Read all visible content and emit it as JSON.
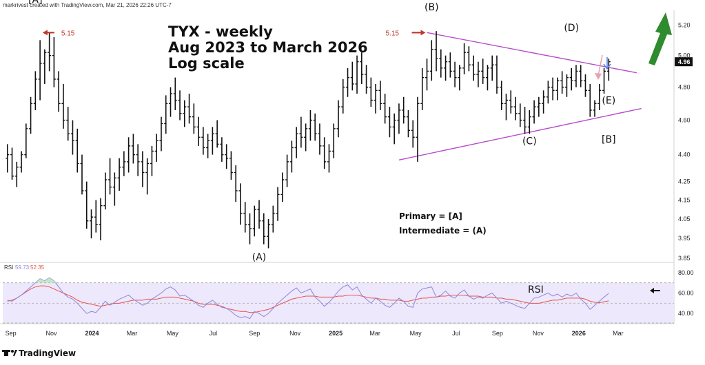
{
  "header": {
    "credit": "markrivest created with TradingView.com, Mar 21, 2026 22:26 UTC-7"
  },
  "title_lines": [
    "TYX - weekly",
    "Aug 2023 to March 2026",
    "Log scale"
  ],
  "notes": {
    "primary": "Primary = [A]",
    "intermediate": "Intermediate =  (A)"
  },
  "footer": {
    "brand": "TradingView"
  },
  "colors": {
    "bars": "#111111",
    "triangle": "#b74cc9",
    "rsi_line": "#8f86d9",
    "rsi_ma": "#e8504a",
    "rsi_band": "#ede8fb",
    "red_arrow": "#c0392b",
    "pink_arrow": "#e8a0b4",
    "blue_arrow": "#4a7fe0",
    "green_arrow": "#2e8b2e"
  },
  "chart_data": {
    "type": "ohlc-bar",
    "scale": "log",
    "ylim": [
      3.85,
      5.3
    ],
    "yticks": [
      "5.20",
      "5.00",
      "4.80",
      "4.60",
      "4.40",
      "4.25",
      "4.15",
      "4.05",
      "3.95",
      "3.85"
    ],
    "x_range": [
      "2023-08-20",
      "2026-05-24"
    ],
    "xticks": [
      {
        "label": "Sep",
        "date": "2023-09-01",
        "bold": false
      },
      {
        "label": "Nov",
        "date": "2023-11-01",
        "bold": false
      },
      {
        "label": "2024",
        "date": "2024-01-01",
        "bold": true
      },
      {
        "label": "Mar",
        "date": "2024-03-01",
        "bold": false
      },
      {
        "label": "May",
        "date": "2024-05-01",
        "bold": false
      },
      {
        "label": "Jul",
        "date": "2024-07-01",
        "bold": false
      },
      {
        "label": "Sep",
        "date": "2024-09-01",
        "bold": false
      },
      {
        "label": "Nov",
        "date": "2024-11-01",
        "bold": false
      },
      {
        "label": "2025",
        "date": "2025-01-01",
        "bold": true
      },
      {
        "label": "Mar",
        "date": "2025-03-01",
        "bold": false
      },
      {
        "label": "May",
        "date": "2025-05-01",
        "bold": false
      },
      {
        "label": "Jul",
        "date": "2025-07-01",
        "bold": false
      },
      {
        "label": "Sep",
        "date": "2025-09-01",
        "bold": false
      },
      {
        "label": "Nov",
        "date": "2025-11-01",
        "bold": false
      },
      {
        "label": "2026",
        "date": "2026-01-01",
        "bold": true
      },
      {
        "label": "Mar",
        "date": "2026-03-01",
        "bold": false
      }
    ],
    "last_price": "4.96",
    "start_date": "2023-08-27",
    "bars": [
      [
        4.38,
        4.46,
        4.3,
        4.4
      ],
      [
        4.4,
        4.44,
        4.26,
        4.28
      ],
      [
        4.28,
        4.36,
        4.22,
        4.33
      ],
      [
        4.33,
        4.42,
        4.3,
        4.4
      ],
      [
        4.4,
        4.58,
        4.38,
        4.55
      ],
      [
        4.55,
        4.74,
        4.52,
        4.7
      ],
      [
        4.7,
        4.9,
        4.66,
        4.85
      ],
      [
        4.85,
        5.1,
        4.72,
        4.95
      ],
      [
        4.95,
        5.04,
        4.82,
        5.02
      ],
      [
        5.02,
        5.15,
        4.9,
        5.0
      ],
      [
        5.0,
        5.12,
        4.8,
        4.85
      ],
      [
        4.85,
        4.9,
        4.65,
        4.7
      ],
      [
        4.7,
        4.82,
        4.55,
        4.6
      ],
      [
        4.6,
        4.68,
        4.48,
        4.52
      ],
      [
        4.52,
        4.6,
        4.4,
        4.48
      ],
      [
        4.48,
        4.55,
        4.3,
        4.35
      ],
      [
        4.35,
        4.4,
        4.18,
        4.2
      ],
      [
        4.2,
        4.25,
        4.0,
        4.04
      ],
      [
        4.04,
        4.1,
        3.95,
        4.06
      ],
      [
        4.06,
        4.15,
        3.98,
        4.02
      ],
      [
        4.02,
        4.16,
        3.94,
        4.12
      ],
      [
        4.12,
        4.3,
        4.1,
        4.26
      ],
      [
        4.26,
        4.38,
        4.18,
        4.22
      ],
      [
        4.22,
        4.3,
        4.12,
        4.27
      ],
      [
        4.27,
        4.38,
        4.2,
        4.33
      ],
      [
        4.33,
        4.42,
        4.28,
        4.36
      ],
      [
        4.36,
        4.5,
        4.3,
        4.45
      ],
      [
        4.45,
        4.52,
        4.35,
        4.4
      ],
      [
        4.4,
        4.46,
        4.28,
        4.36
      ],
      [
        4.36,
        4.42,
        4.22,
        4.3
      ],
      [
        4.3,
        4.38,
        4.18,
        4.35
      ],
      [
        4.35,
        4.45,
        4.28,
        4.42
      ],
      [
        4.42,
        4.52,
        4.36,
        4.48
      ],
      [
        4.48,
        4.62,
        4.42,
        4.58
      ],
      [
        4.58,
        4.75,
        4.52,
        4.7
      ],
      [
        4.7,
        4.8,
        4.62,
        4.76
      ],
      [
        4.76,
        4.86,
        4.66,
        4.72
      ],
      [
        4.72,
        4.78,
        4.6,
        4.64
      ],
      [
        4.64,
        4.72,
        4.56,
        4.68
      ],
      [
        4.68,
        4.76,
        4.58,
        4.62
      ],
      [
        4.62,
        4.7,
        4.52,
        4.56
      ],
      [
        4.56,
        4.62,
        4.45,
        4.5
      ],
      [
        4.5,
        4.56,
        4.4,
        4.44
      ],
      [
        4.44,
        4.52,
        4.38,
        4.48
      ],
      [
        4.48,
        4.56,
        4.4,
        4.52
      ],
      [
        4.52,
        4.6,
        4.44,
        4.46
      ],
      [
        4.46,
        4.5,
        4.36,
        4.4
      ],
      [
        4.4,
        4.46,
        4.32,
        4.38
      ],
      [
        4.38,
        4.42,
        4.26,
        4.3
      ],
      [
        4.3,
        4.34,
        4.14,
        4.2
      ],
      [
        4.2,
        4.24,
        4.02,
        4.08
      ],
      [
        4.08,
        4.14,
        3.98,
        4.02
      ],
      [
        4.02,
        4.08,
        3.92,
        4.0
      ],
      [
        4.0,
        4.12,
        3.96,
        4.1
      ],
      [
        4.1,
        4.15,
        4.0,
        4.04
      ],
      [
        4.04,
        4.08,
        3.92,
        3.96
      ],
      [
        3.96,
        4.05,
        3.9,
        4.02
      ],
      [
        4.02,
        4.12,
        3.98,
        4.08
      ],
      [
        4.08,
        4.22,
        4.04,
        4.18
      ],
      [
        4.18,
        4.3,
        4.14,
        4.26
      ],
      [
        4.26,
        4.4,
        4.22,
        4.36
      ],
      [
        4.36,
        4.48,
        4.3,
        4.44
      ],
      [
        4.44,
        4.56,
        4.38,
        4.52
      ],
      [
        4.52,
        4.62,
        4.44,
        4.5
      ],
      [
        4.5,
        4.58,
        4.42,
        4.55
      ],
      [
        4.55,
        4.66,
        4.48,
        4.6
      ],
      [
        4.6,
        4.64,
        4.48,
        4.52
      ],
      [
        4.52,
        4.58,
        4.4,
        4.45
      ],
      [
        4.45,
        4.5,
        4.32,
        4.36
      ],
      [
        4.36,
        4.46,
        4.3,
        4.42
      ],
      [
        4.42,
        4.58,
        4.38,
        4.55
      ],
      [
        4.55,
        4.72,
        4.5,
        4.68
      ],
      [
        4.68,
        4.85,
        4.64,
        4.8
      ],
      [
        4.8,
        4.92,
        4.74,
        4.86
      ],
      [
        4.86,
        4.96,
        4.78,
        4.82
      ],
      [
        4.82,
        5.0,
        4.76,
        4.96
      ],
      [
        4.96,
        5.02,
        4.82,
        4.88
      ],
      [
        4.88,
        4.94,
        4.76,
        4.8
      ],
      [
        4.8,
        4.86,
        4.68,
        4.72
      ],
      [
        4.72,
        4.82,
        4.64,
        4.78
      ],
      [
        4.78,
        4.84,
        4.66,
        4.7
      ],
      [
        4.7,
        4.76,
        4.58,
        4.62
      ],
      [
        4.62,
        4.68,
        4.5,
        4.56
      ],
      [
        4.56,
        4.64,
        4.46,
        4.6
      ],
      [
        4.6,
        4.7,
        4.52,
        4.66
      ],
      [
        4.66,
        4.74,
        4.58,
        4.62
      ],
      [
        4.62,
        4.66,
        4.5,
        4.54
      ],
      [
        4.54,
        4.6,
        4.44,
        4.5
      ],
      [
        4.5,
        4.74,
        4.36,
        4.7
      ],
      [
        4.7,
        4.92,
        4.66,
        4.86
      ],
      [
        4.86,
        4.98,
        4.78,
        4.9
      ],
      [
        4.9,
        5.1,
        4.84,
        5.04
      ],
      [
        5.04,
        5.16,
        4.9,
        4.98
      ],
      [
        4.98,
        5.04,
        4.86,
        4.92
      ],
      [
        4.92,
        5.0,
        4.84,
        4.96
      ],
      [
        4.96,
        5.02,
        4.86,
        4.9
      ],
      [
        4.9,
        4.96,
        4.8,
        4.86
      ],
      [
        4.86,
        4.94,
        4.78,
        4.92
      ],
      [
        4.92,
        5.08,
        4.88,
        5.02
      ],
      [
        5.02,
        5.06,
        4.9,
        4.94
      ],
      [
        4.94,
        5.0,
        4.84,
        4.88
      ],
      [
        4.88,
        4.96,
        4.8,
        4.9
      ],
      [
        4.9,
        4.98,
        4.82,
        4.86
      ],
      [
        4.86,
        4.94,
        4.78,
        4.92
      ],
      [
        4.92,
        5.0,
        4.84,
        4.94
      ],
      [
        4.94,
        5.0,
        4.76,
        4.8
      ],
      [
        4.8,
        4.84,
        4.66,
        4.7
      ],
      [
        4.7,
        4.76,
        4.6,
        4.72
      ],
      [
        4.72,
        4.78,
        4.64,
        4.68
      ],
      [
        4.68,
        4.74,
        4.6,
        4.64
      ],
      [
        4.64,
        4.7,
        4.56,
        4.6
      ],
      [
        4.6,
        4.68,
        4.52,
        4.56
      ],
      [
        4.56,
        4.66,
        4.52,
        4.62
      ],
      [
        4.62,
        4.72,
        4.58,
        4.68
      ],
      [
        4.68,
        4.74,
        4.62,
        4.7
      ],
      [
        4.7,
        4.78,
        4.64,
        4.74
      ],
      [
        4.74,
        4.84,
        4.7,
        4.8
      ],
      [
        4.8,
        4.86,
        4.72,
        4.78
      ],
      [
        4.78,
        4.86,
        4.72,
        4.84
      ],
      [
        4.84,
        4.9,
        4.76,
        4.8
      ],
      [
        4.8,
        4.88,
        4.74,
        4.86
      ],
      [
        4.86,
        4.92,
        4.78,
        4.84
      ],
      [
        4.84,
        4.94,
        4.8,
        4.9
      ],
      [
        4.9,
        4.94,
        4.8,
        4.84
      ],
      [
        4.84,
        4.88,
        4.74,
        4.78
      ],
      [
        4.78,
        4.82,
        4.62,
        4.66
      ],
      [
        4.66,
        4.72,
        4.62,
        4.7
      ],
      [
        4.7,
        4.82,
        4.66,
        4.78
      ],
      [
        4.78,
        4.92,
        4.76,
        4.9
      ],
      [
        4.9,
        4.98,
        4.84,
        4.96
      ]
    ],
    "annotations": [
      {
        "text": "[A]",
        "date": "2023-10-08",
        "price": 5.35
      },
      {
        "text": "(B)",
        "date": "2025-05-25",
        "price": 5.3
      },
      {
        "text": "(D)",
        "date": "2025-12-21",
        "price": 5.16
      },
      {
        "text": "(C)",
        "date": "2025-10-19",
        "price": 4.46
      },
      {
        "text": "(E)",
        "date": "2026-02-15",
        "price": 4.7
      },
      {
        "text": "[B]",
        "date": "2026-02-15",
        "price": 4.47
      },
      {
        "text": "(A)",
        "date": "2024-09-08",
        "price": 3.84
      }
    ],
    "level_marks": [
      {
        "text": "5.15",
        "date": "2023-10-22",
        "price": 5.15
      },
      {
        "text": "5.15",
        "date": "2025-05-18",
        "price": 5.15
      }
    ],
    "triangle": {
      "upper": [
        [
          "2025-05-18",
          5.15
        ],
        [
          "2026-03-29",
          4.89
        ]
      ],
      "lower": [
        [
          "2025-04-06",
          4.37
        ],
        [
          "2026-04-05",
          4.67
        ]
      ]
    },
    "rsi": {
      "label": "RSI",
      "legend": {
        "name": "RSI",
        "value": "59.73",
        "ma_value": "52.35"
      },
      "ylim": [
        30,
        90
      ],
      "yticks": [
        80,
        60,
        40
      ],
      "upper_band": 70,
      "lower_band": 30,
      "middle": 50,
      "values": [
        53,
        52,
        55,
        58,
        62,
        66,
        70,
        74,
        72,
        75,
        72,
        66,
        60,
        56,
        54,
        50,
        45,
        40,
        42,
        41,
        46,
        52,
        48,
        51,
        54,
        56,
        58,
        54,
        51,
        48,
        50,
        54,
        57,
        60,
        64,
        66,
        63,
        57,
        58,
        55,
        52,
        48,
        46,
        50,
        53,
        49,
        46,
        45,
        42,
        38,
        36,
        37,
        35,
        42,
        40,
        37,
        40,
        45,
        50,
        54,
        58,
        62,
        65,
        60,
        62,
        64,
        56,
        52,
        47,
        51,
        56,
        62,
        66,
        68,
        63,
        66,
        58,
        54,
        50,
        55,
        52,
        48,
        46,
        50,
        55,
        52,
        47,
        46,
        60,
        64,
        65,
        66,
        56,
        58,
        62,
        57,
        55,
        60,
        63,
        57,
        54,
        56,
        55,
        58,
        60,
        55,
        50,
        52,
        50,
        48,
        46,
        45,
        50,
        55,
        56,
        58,
        60,
        57,
        59,
        56,
        59,
        57,
        60,
        54,
        50,
        44,
        48,
        52,
        56,
        59.73
      ],
      "ma": [
        52,
        53,
        55,
        58,
        61,
        64,
        66,
        67,
        67,
        66,
        64,
        62,
        60,
        58,
        56,
        53,
        51,
        50,
        49,
        48,
        47,
        48,
        49,
        50,
        50,
        51,
        52,
        53,
        53,
        53,
        54,
        54,
        54,
        55,
        56,
        56,
        56,
        55,
        54,
        53,
        52,
        50,
        49,
        49,
        49,
        48,
        47,
        45,
        44,
        43,
        42,
        42,
        41,
        41,
        42,
        43,
        44,
        46,
        48,
        50,
        52,
        54,
        55,
        56,
        57,
        57,
        57,
        56,
        56,
        56,
        56,
        57,
        57,
        58,
        58,
        58,
        57,
        56,
        55,
        55,
        54,
        54,
        53,
        53,
        53,
        52,
        52,
        53,
        54,
        55,
        55,
        56,
        56,
        57,
        57,
        58,
        58,
        58,
        58,
        57,
        57,
        57,
        56,
        56,
        56,
        55,
        55,
        54,
        54,
        53,
        52,
        51,
        50,
        50,
        50,
        51,
        52,
        53,
        53,
        54,
        55,
        55,
        55,
        55,
        54,
        52,
        51,
        50.5,
        51.5,
        52.35
      ]
    }
  }
}
